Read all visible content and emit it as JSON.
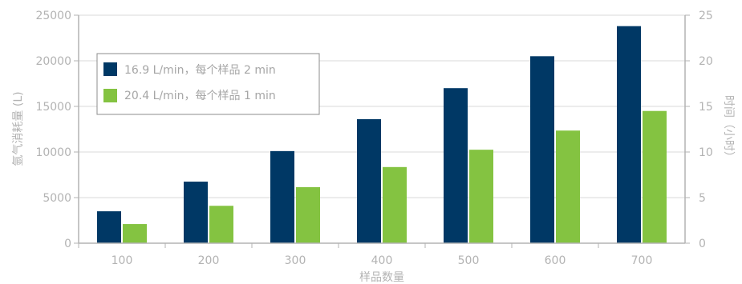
{
  "chart_data": {
    "type": "bar",
    "categories": [
      "100",
      "200",
      "300",
      "400",
      "500",
      "600",
      "700"
    ],
    "series": [
      {
        "name": "16.9 L/min，每个样品 2 min",
        "values": [
          3500,
          6750,
          10100,
          13600,
          17000,
          20500,
          23800
        ],
        "color": "#003865"
      },
      {
        "name": "20.4 L/min，每个样品 1 min",
        "values": [
          2100,
          4100,
          6150,
          8350,
          10250,
          12350,
          14500
        ],
        "color": "#84c341"
      }
    ],
    "xlabel": "样品数量",
    "ylabel": "氩气消耗量 (L)",
    "y2label": "时间（小时）",
    "ylim": [
      0,
      25000
    ],
    "yticks": [
      0,
      5000,
      10000,
      15000,
      20000,
      25000
    ],
    "y2lim": [
      0,
      25
    ],
    "y2ticks": [
      0,
      5,
      10,
      15,
      20,
      25
    ],
    "grid": true,
    "legend_position": "top-left"
  }
}
